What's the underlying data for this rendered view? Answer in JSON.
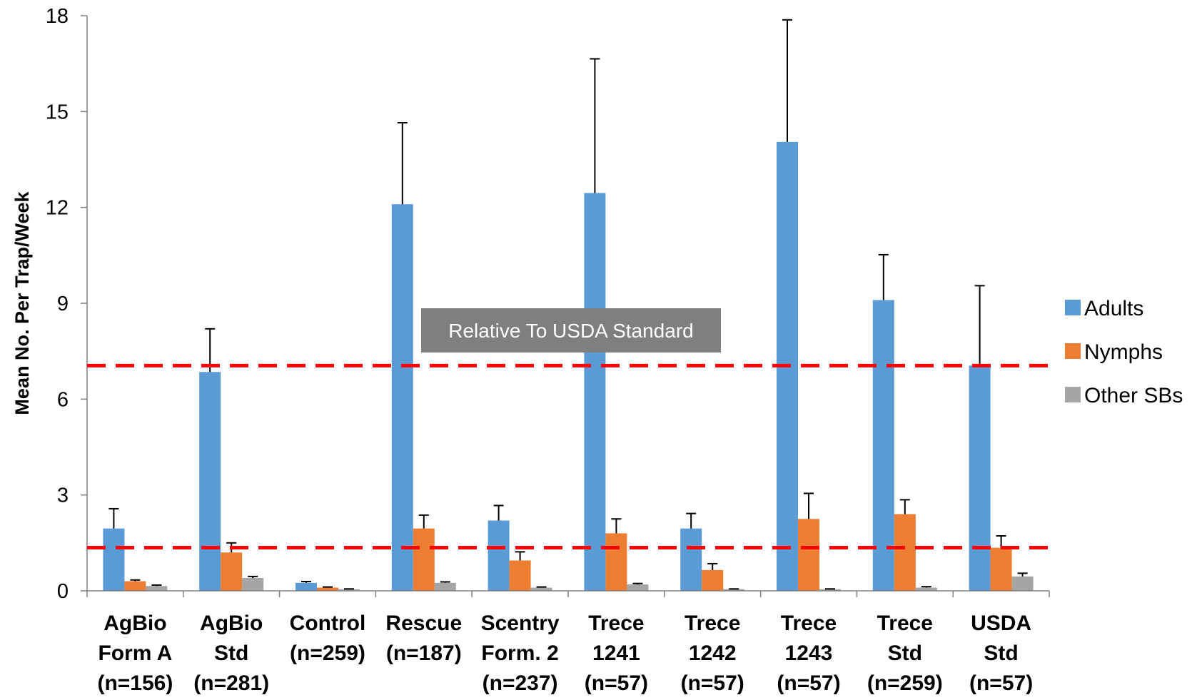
{
  "chart_data": {
    "type": "bar",
    "ylabel": "Mean No. Per Trap/Week",
    "ylim": [
      0,
      18
    ],
    "yticks": [
      0,
      3,
      6,
      9,
      12,
      15,
      18
    ],
    "categories": [
      [
        "AgBio",
        "Form A",
        "(n=156)"
      ],
      [
        "AgBio",
        "Std",
        "(n=281)"
      ],
      [
        "Control",
        "(n=259)"
      ],
      [
        "Rescue",
        "(n=187)"
      ],
      [
        "Scentry",
        "Form. 2",
        "(n=237)"
      ],
      [
        "Trece",
        "1241",
        "(n=57)"
      ],
      [
        "Trece",
        "1242",
        "(n=57)"
      ],
      [
        "Trece",
        "1243",
        "(n=57)"
      ],
      [
        "Trece",
        "Std",
        "(n=259)"
      ],
      [
        "USDA",
        "Std",
        "(n=57)"
      ]
    ],
    "series": [
      {
        "name": "Adults",
        "color": "#5b9bd5",
        "values": [
          1.95,
          6.85,
          0.25,
          12.1,
          2.2,
          12.45,
          1.95,
          14.05,
          9.1,
          7.05
        ],
        "errors": [
          0.62,
          1.35,
          0.04,
          2.55,
          0.47,
          4.2,
          0.47,
          3.82,
          1.42,
          2.5
        ]
      },
      {
        "name": "Nymphs",
        "color": "#ed7d31",
        "values": [
          0.3,
          1.2,
          0.1,
          1.95,
          0.95,
          1.8,
          0.65,
          2.25,
          2.4,
          1.35
        ],
        "errors": [
          0.04,
          0.3,
          0.02,
          0.42,
          0.27,
          0.45,
          0.2,
          0.8,
          0.45,
          0.37
        ]
      },
      {
        "name": "Other SBs",
        "color": "#a5a5a5",
        "values": [
          0.15,
          0.4,
          0.05,
          0.25,
          0.1,
          0.2,
          0.05,
          0.05,
          0.1,
          0.45
        ],
        "errors": [
          0.03,
          0.05,
          0.01,
          0.03,
          0.02,
          0.03,
          0.01,
          0.01,
          0.03,
          0.1
        ]
      }
    ],
    "reference_lines": [
      {
        "value": 7.05,
        "color": "#ff0000"
      },
      {
        "value": 1.35,
        "color": "#ff0000"
      }
    ],
    "annotation": {
      "text": "Relative To USDA Standard",
      "background": "#7f7f7f"
    },
    "legend_position": "right",
    "grid": false
  }
}
